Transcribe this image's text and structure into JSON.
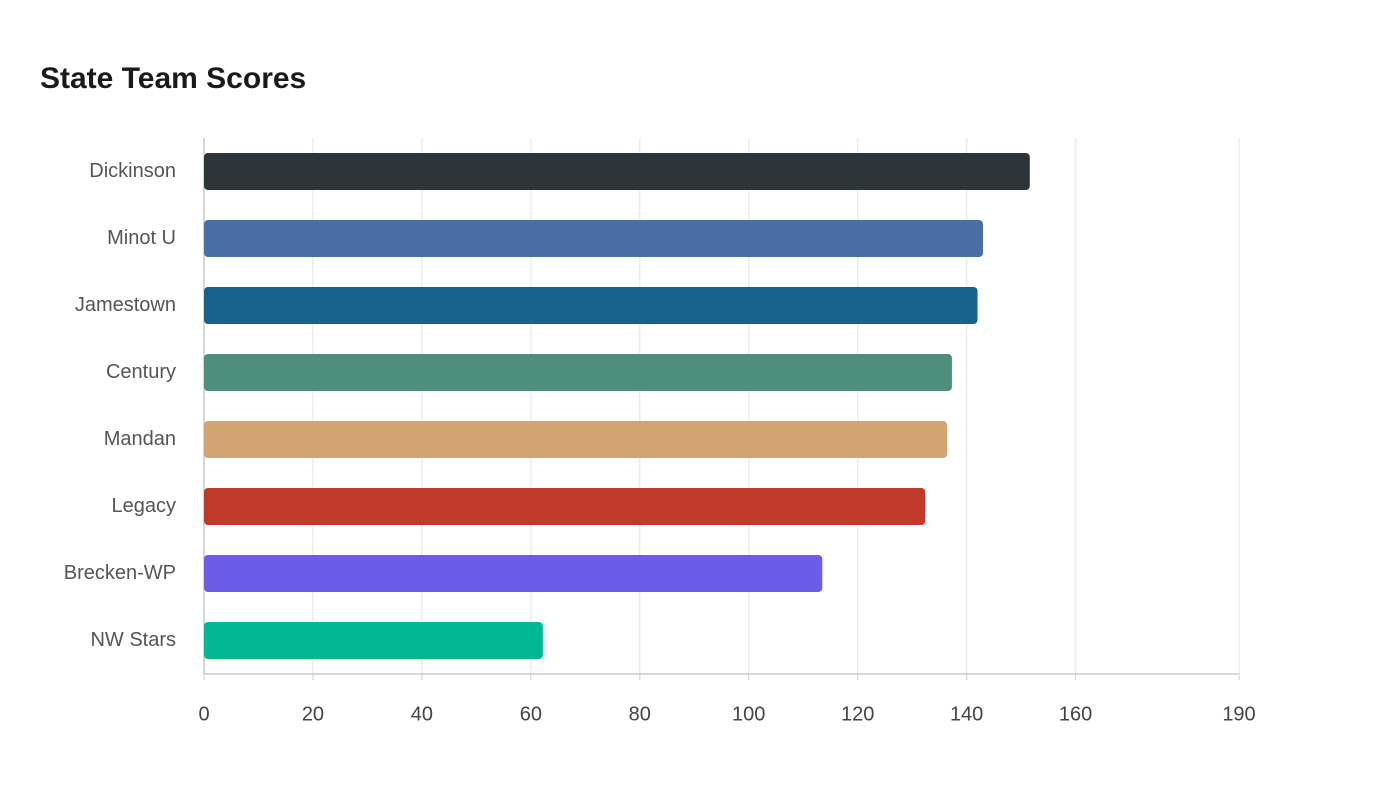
{
  "chart_data": {
    "type": "hbar",
    "title": "State Team Scores",
    "categories": [
      "Dickinson",
      "Minot U",
      "Jamestown",
      "Century",
      "Mandan",
      "Legacy",
      "Brecken-WP",
      "NW Stars"
    ],
    "values": [
      151.6,
      143,
      142,
      137.3,
      136.4,
      132.4,
      113.5,
      62.2
    ],
    "colors": [
      "#2e3539",
      "#4a6fa5",
      "#16628a",
      "#4e8e7c",
      "#d4a373",
      "#c0392b",
      "#6c5ce7",
      "#00b894"
    ],
    "xlim": [
      0,
      190
    ],
    "xticks": [
      0,
      20,
      40,
      60,
      80,
      100,
      120,
      140,
      160,
      190
    ],
    "grid": true
  }
}
